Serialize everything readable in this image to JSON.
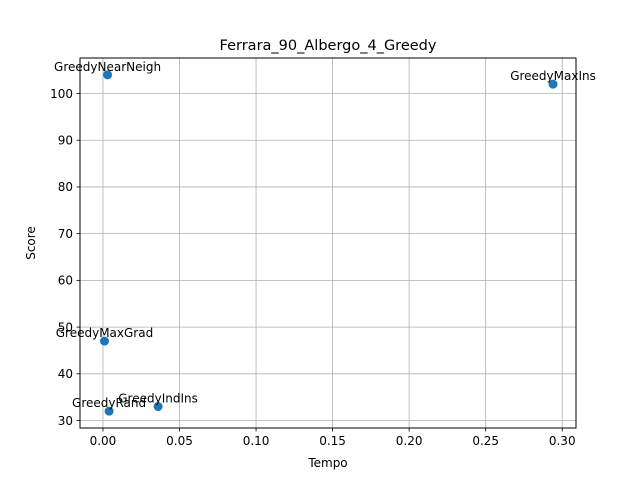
{
  "chart_data": {
    "type": "scatter",
    "title": "Ferrara_90_Albergo_4_Greedy",
    "xlabel": "Tempo",
    "ylabel": "Score",
    "xlim": [
      -0.015,
      0.309
    ],
    "ylim": [
      28.4,
      107.6
    ],
    "xticks": [
      0.0,
      0.05,
      0.1,
      0.15,
      0.2,
      0.25,
      0.3
    ],
    "xtick_labels": [
      "0.00",
      "0.05",
      "0.10",
      "0.15",
      "0.20",
      "0.25",
      "0.30"
    ],
    "yticks": [
      30,
      40,
      50,
      60,
      70,
      80,
      90,
      100
    ],
    "ytick_labels": [
      "30",
      "40",
      "50",
      "60",
      "70",
      "80",
      "90",
      "100"
    ],
    "grid": true,
    "color": "#1f77b4",
    "points": [
      {
        "label": "GreedyNearNeigh",
        "x": 0.003,
        "y": 104
      },
      {
        "label": "GreedyMaxIns",
        "x": 0.294,
        "y": 102
      },
      {
        "label": "GreedyMaxGrad",
        "x": 0.001,
        "y": 47
      },
      {
        "label": "GreedyIndIns",
        "x": 0.036,
        "y": 33
      },
      {
        "label": "GreedyRand",
        "x": 0.004,
        "y": 32
      }
    ]
  }
}
